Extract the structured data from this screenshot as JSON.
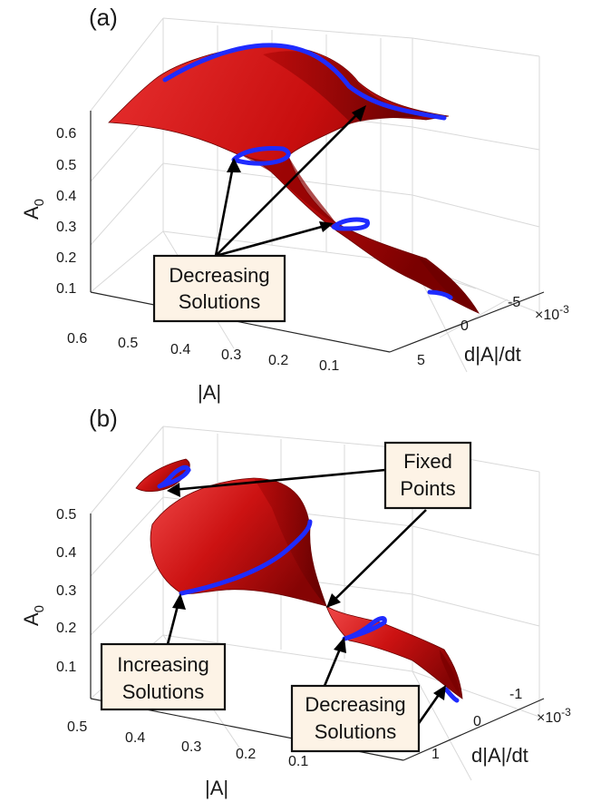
{
  "chart_data": [
    {
      "type": "surface",
      "panel_label": "(a)",
      "xlabel": "|A|",
      "ylabel": "d|A|/dt",
      "zlabel": "A",
      "zlabel_sub": "0",
      "y_exponent_base": "×10",
      "y_exponent_power": "-3",
      "x_ticks": [
        "0.6",
        "0.5",
        "0.4",
        "0.3",
        "0.2",
        "0.1"
      ],
      "y_ticks": [
        "-5",
        "0",
        "5"
      ],
      "z_ticks": [
        "0.6",
        "0.5",
        "0.4",
        "0.3",
        "0.2",
        "0.1"
      ],
      "annotations": [
        {
          "lines": [
            "Decreasing",
            "Solutions"
          ]
        }
      ]
    },
    {
      "type": "surface",
      "panel_label": "(b)",
      "xlabel": "|A|",
      "ylabel": "d|A|/dt",
      "zlabel": "A",
      "zlabel_sub": "0",
      "y_exponent_base": "×10",
      "y_exponent_power": "-3",
      "x_ticks": [
        "0.5",
        "0.4",
        "0.3",
        "0.2",
        "0.1"
      ],
      "y_ticks": [
        "-1",
        "0",
        "1"
      ],
      "z_ticks": [
        "0.5",
        "0.4",
        "0.3",
        "0.2",
        "0.1"
      ],
      "annotations": [
        {
          "lines": [
            "Fixed",
            "Points"
          ]
        },
        {
          "lines": [
            "Increasing",
            "Solutions"
          ]
        },
        {
          "lines": [
            "Decreasing",
            "Solutions"
          ]
        }
      ]
    }
  ],
  "colors": {
    "surface": "#d01414",
    "surface_dark": "#7a0000",
    "surface_light": "#f05050",
    "curve": "#1f2bff",
    "annotation_fill": "#fdf3e6"
  }
}
